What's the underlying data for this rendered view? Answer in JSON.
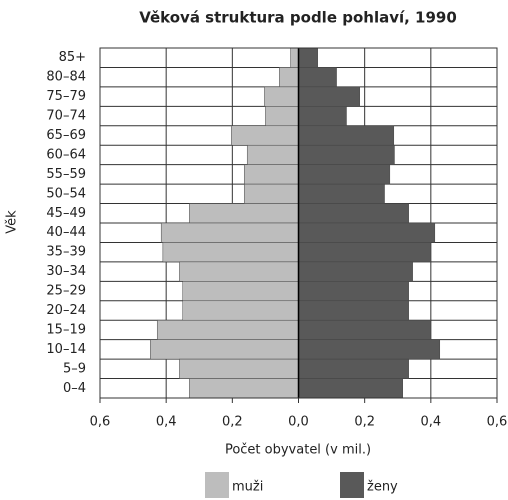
{
  "chart_data": {
    "type": "bar",
    "orientation": "horizontal",
    "title": "Věková struktura podle pohlaví, 1990",
    "xlabel": "Počet obyvatel (v mil.)",
    "ylabel": "Věk",
    "categories": [
      "85+",
      "80–84",
      "75–79",
      "70–74",
      "65–69",
      "60–64",
      "55–59",
      "50–54",
      "45–49",
      "40–44",
      "35–39",
      "30–34",
      "25–29",
      "20–24",
      "15–19",
      "10–14",
      "5–9",
      "0–4"
    ],
    "series": [
      {
        "name": "muži",
        "color": "#bdbdbd",
        "values": [
          -0.024,
          -0.058,
          -0.103,
          -0.1,
          -0.203,
          -0.155,
          -0.164,
          -0.164,
          -0.33,
          -0.415,
          -0.41,
          -0.36,
          -0.35,
          -0.35,
          -0.427,
          -0.448,
          -0.36,
          -0.33
        ]
      },
      {
        "name": "ženy",
        "color": "#595959",
        "values": [
          0.058,
          0.115,
          0.185,
          0.145,
          0.288,
          0.29,
          0.276,
          0.26,
          0.333,
          0.412,
          0.4,
          0.345,
          0.333,
          0.333,
          0.4,
          0.427,
          0.333,
          0.315
        ]
      }
    ],
    "xlim": [
      -0.6,
      0.6
    ],
    "xticks": [
      {
        "value": -0.6,
        "label": "0,6"
      },
      {
        "value": -0.4,
        "label": "0,4"
      },
      {
        "value": -0.2,
        "label": "0,2"
      },
      {
        "value": 0,
        "label": "0,0"
      },
      {
        "value": 0.2,
        "label": "0,2"
      },
      {
        "value": 0.4,
        "label": "0,4"
      },
      {
        "value": 0.6,
        "label": "0,6"
      }
    ],
    "grid": true,
    "legend": "bottom"
  }
}
